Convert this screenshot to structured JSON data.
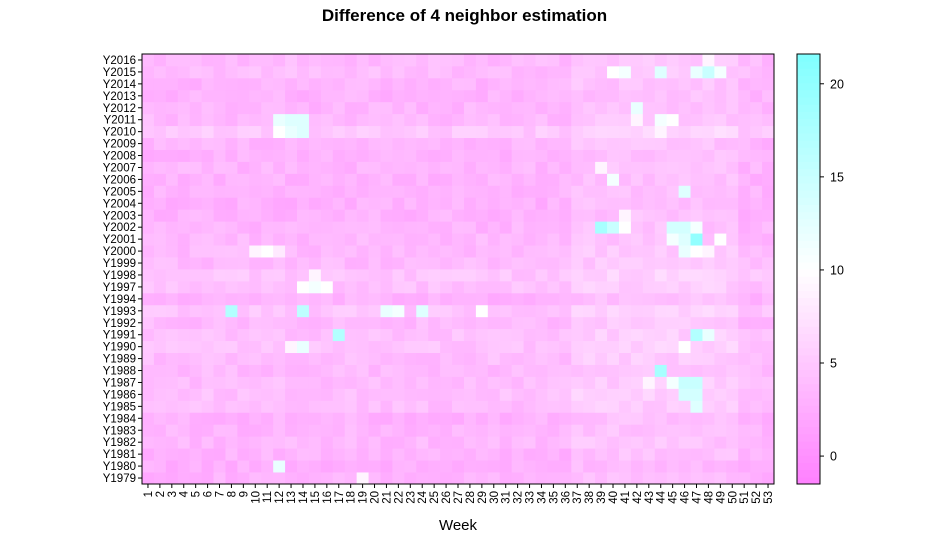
{
  "chart_data": {
    "type": "heatmap",
    "title": "Difference of 4 neighbor estimation",
    "xlabel": "Week",
    "ylabel": "",
    "x_categories": [
      "1",
      "2",
      "3",
      "4",
      "5",
      "6",
      "7",
      "8",
      "9",
      "10",
      "11",
      "12",
      "13",
      "14",
      "15",
      "16",
      "17",
      "18",
      "19",
      "20",
      "21",
      "22",
      "23",
      "24",
      "25",
      "26",
      "27",
      "28",
      "29",
      "30",
      "31",
      "32",
      "33",
      "34",
      "35",
      "36",
      "37",
      "38",
      "39",
      "40",
      "41",
      "42",
      "43",
      "44",
      "45",
      "46",
      "47",
      "48",
      "49",
      "50",
      "51",
      "52",
      "53"
    ],
    "y_categories": [
      "Y1979",
      "Y1980",
      "Y1981",
      "Y1982",
      "Y1983",
      "Y1984",
      "Y1985",
      "Y1986",
      "Y1987",
      "Y1988",
      "Y1989",
      "Y1990",
      "Y1991",
      "Y1992",
      "Y1993",
      "Y1994",
      "Y1997",
      "Y1998",
      "Y1999",
      "Y2000",
      "Y2001",
      "Y2002",
      "Y2003",
      "Y2004",
      "Y2005",
      "Y2006",
      "Y2007",
      "Y2008",
      "Y2009",
      "Y2010",
      "Y2011",
      "Y2012",
      "Y2013",
      "Y2014",
      "Y2015",
      "Y2016"
    ],
    "colorbar": {
      "min": -1.5,
      "max": 21.6,
      "ticks": [
        0,
        5,
        10,
        15,
        20
      ],
      "low_color": "#FF80FF",
      "mid_color": "#FFFFFF",
      "high_color": "#80FFFF",
      "mid_value": 10
    },
    "base_value": 2.5,
    "row_offsets": {
      "Y1979": 0.5,
      "Y1980": 0.2,
      "Y1981": 0.6,
      "Y1982": 1.0,
      "Y1983": 0.8,
      "Y1984": 0.5,
      "Y1985": 1.6,
      "Y1986": 1.8,
      "Y1987": 1.5,
      "Y1988": 1.2,
      "Y1989": 1.5,
      "Y1990": 2.0,
      "Y1991": 1.8,
      "Y1992": 1.2,
      "Y1993": 2.2,
      "Y1994": 0.5,
      "Y1997": 1.8,
      "Y1998": 2.2,
      "Y1999": 1.2,
      "Y2000": 1.2,
      "Y2001": 1.0,
      "Y2002": 0.8,
      "Y2003": 0.6,
      "Y2004": 0.4,
      "Y2005": 0.6,
      "Y2006": 0.6,
      "Y2007": 0.8,
      "Y2008": 0.6,
      "Y2009": 0.8,
      "Y2010": 2.5,
      "Y2011": 1.2,
      "Y2012": 0.8,
      "Y2013": 0.6,
      "Y2014": 0.8,
      "Y2015": 1.5,
      "Y2016": 1.2
    },
    "hotspots": [
      {
        "week": 8,
        "year": "Y1993",
        "value": 17
      },
      {
        "week": 14,
        "year": "Y1993",
        "value": 16
      },
      {
        "week": 21,
        "year": "Y1993",
        "value": 12
      },
      {
        "week": 22,
        "year": "Y1993",
        "value": 11
      },
      {
        "week": 24,
        "year": "Y1993",
        "value": 13
      },
      {
        "week": 29,
        "year": "Y1993",
        "value": 10
      },
      {
        "week": 14,
        "year": "Y1997",
        "value": 10
      },
      {
        "week": 15,
        "year": "Y1997",
        "value": 11
      },
      {
        "week": 16,
        "year": "Y1997",
        "value": 10
      },
      {
        "week": 15,
        "year": "Y1998",
        "value": 9
      },
      {
        "week": 17,
        "year": "Y1991",
        "value": 17
      },
      {
        "week": 14,
        "year": "Y1990",
        "value": 12
      },
      {
        "week": 13,
        "year": "Y1990",
        "value": 9
      },
      {
        "week": 12,
        "year": "Y1980",
        "value": 12
      },
      {
        "week": 19,
        "year": "Y1979",
        "value": 9
      },
      {
        "week": 12,
        "year": "Y2011",
        "value": 12
      },
      {
        "week": 13,
        "year": "Y2011",
        "value": 13
      },
      {
        "week": 14,
        "year": "Y2011",
        "value": 13
      },
      {
        "week": 12,
        "year": "Y2010",
        "value": 10
      },
      {
        "week": 13,
        "year": "Y2010",
        "value": 12
      },
      {
        "week": 14,
        "year": "Y2010",
        "value": 13
      },
      {
        "week": 10,
        "year": "Y2000",
        "value": 9
      },
      {
        "week": 11,
        "year": "Y2000",
        "value": 10
      },
      {
        "week": 12,
        "year": "Y2000",
        "value": 8
      },
      {
        "week": 39,
        "year": "Y2002",
        "value": 18
      },
      {
        "week": 40,
        "year": "Y2002",
        "value": 15
      },
      {
        "week": 41,
        "year": "Y2002",
        "value": 10
      },
      {
        "week": 45,
        "year": "Y2002",
        "value": 14
      },
      {
        "week": 46,
        "year": "Y2002",
        "value": 14
      },
      {
        "week": 47,
        "year": "Y2002",
        "value": 11
      },
      {
        "week": 45,
        "year": "Y2001",
        "value": 11
      },
      {
        "week": 46,
        "year": "Y2001",
        "value": 13
      },
      {
        "week": 47,
        "year": "Y2001",
        "value": 20
      },
      {
        "week": 49,
        "year": "Y2001",
        "value": 10
      },
      {
        "week": 46,
        "year": "Y2000",
        "value": 12
      },
      {
        "week": 47,
        "year": "Y2000",
        "value": 10
      },
      {
        "week": 48,
        "year": "Y2000",
        "value": 9
      },
      {
        "week": 47,
        "year": "Y1991",
        "value": 17
      },
      {
        "week": 48,
        "year": "Y1991",
        "value": 12
      },
      {
        "week": 46,
        "year": "Y1990",
        "value": 10
      },
      {
        "week": 44,
        "year": "Y1988",
        "value": 18
      },
      {
        "week": 46,
        "year": "Y1987",
        "value": 15
      },
      {
        "week": 47,
        "year": "Y1987",
        "value": 15
      },
      {
        "week": 46,
        "year": "Y1986",
        "value": 14
      },
      {
        "week": 47,
        "year": "Y1986",
        "value": 14
      },
      {
        "week": 47,
        "year": "Y1985",
        "value": 13
      },
      {
        "week": 45,
        "year": "Y1987",
        "value": 11
      },
      {
        "week": 43,
        "year": "Y1987",
        "value": 9
      },
      {
        "week": 40,
        "year": "Y2015",
        "value": 10
      },
      {
        "week": 41,
        "year": "Y2015",
        "value": 11
      },
      {
        "week": 44,
        "year": "Y2015",
        "value": 13
      },
      {
        "week": 47,
        "year": "Y2015",
        "value": 12
      },
      {
        "week": 48,
        "year": "Y2015",
        "value": 15
      },
      {
        "week": 49,
        "year": "Y2015",
        "value": 11
      },
      {
        "week": 48,
        "year": "Y2016",
        "value": 9
      },
      {
        "week": 42,
        "year": "Y2012",
        "value": 12
      },
      {
        "week": 42,
        "year": "Y2011",
        "value": 9
      },
      {
        "week": 44,
        "year": "Y2011",
        "value": 11
      },
      {
        "week": 45,
        "year": "Y2011",
        "value": 10
      },
      {
        "week": 40,
        "year": "Y2006",
        "value": 11
      },
      {
        "week": 46,
        "year": "Y2005",
        "value": 13
      },
      {
        "week": 39,
        "year": "Y2007",
        "value": 9
      },
      {
        "week": 44,
        "year": "Y2010",
        "value": 9
      },
      {
        "week": 41,
        "year": "Y2003",
        "value": 9
      }
    ],
    "legend_position": "right",
    "grid": false
  }
}
